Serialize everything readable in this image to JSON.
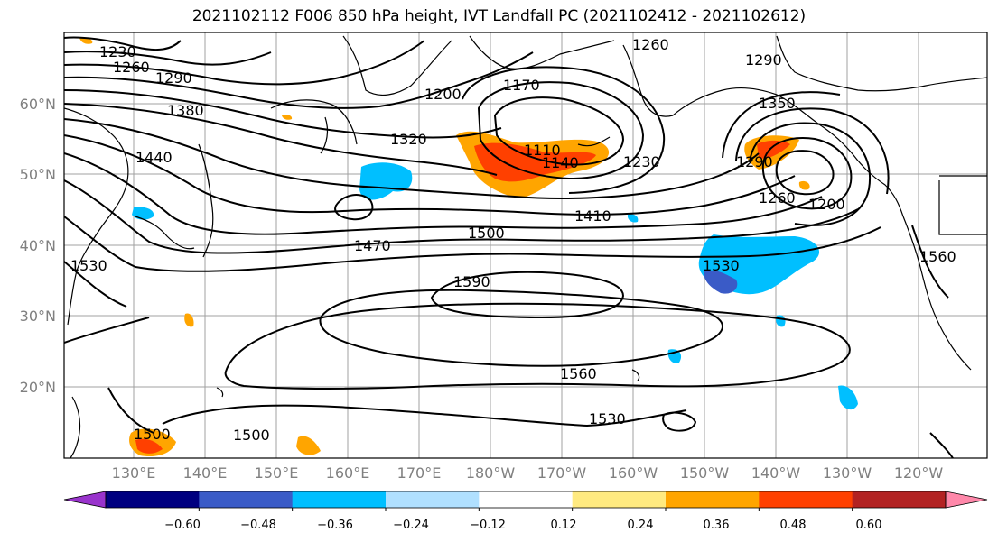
{
  "title": "2021102112 F006 850 hPa height, IVT Landfall PC (2021102412 - 2021102612)",
  "map": {
    "lat_labels": [
      "60°N",
      "50°N",
      "40°N",
      "30°N",
      "20°N"
    ],
    "lon_labels": [
      "130°E",
      "140°E",
      "150°E",
      "160°E",
      "170°E",
      "180°W",
      "170°W",
      "160°W",
      "150°W",
      "140°W",
      "130°W",
      "120°W"
    ],
    "contour_labels": [
      "1230",
      "1260",
      "1290",
      "1380",
      "1440",
      "1530",
      "1200",
      "1320",
      "1170",
      "1110",
      "1140",
      "1230",
      "1260",
      "1290",
      "1290",
      "1350",
      "1200",
      "1260",
      "1410",
      "1470",
      "1500",
      "1530",
      "1590",
      "1560",
      "1560",
      "1530",
      "1500",
      "1500"
    ]
  },
  "colorbar": {
    "colors": [
      "#9933cc",
      "#000080",
      "#3a5bc7",
      "#00bfff",
      "#b0e0ff",
      "#ffffff",
      "#ffea80",
      "#ffa500",
      "#ff4000",
      "#b22222",
      "#ff88aa"
    ],
    "tick_labels": [
      "−0.60",
      "−0.48",
      "−0.36",
      "−0.24",
      "−0.12",
      "0.12",
      "0.24",
      "0.36",
      "0.48",
      "0.60"
    ]
  }
}
